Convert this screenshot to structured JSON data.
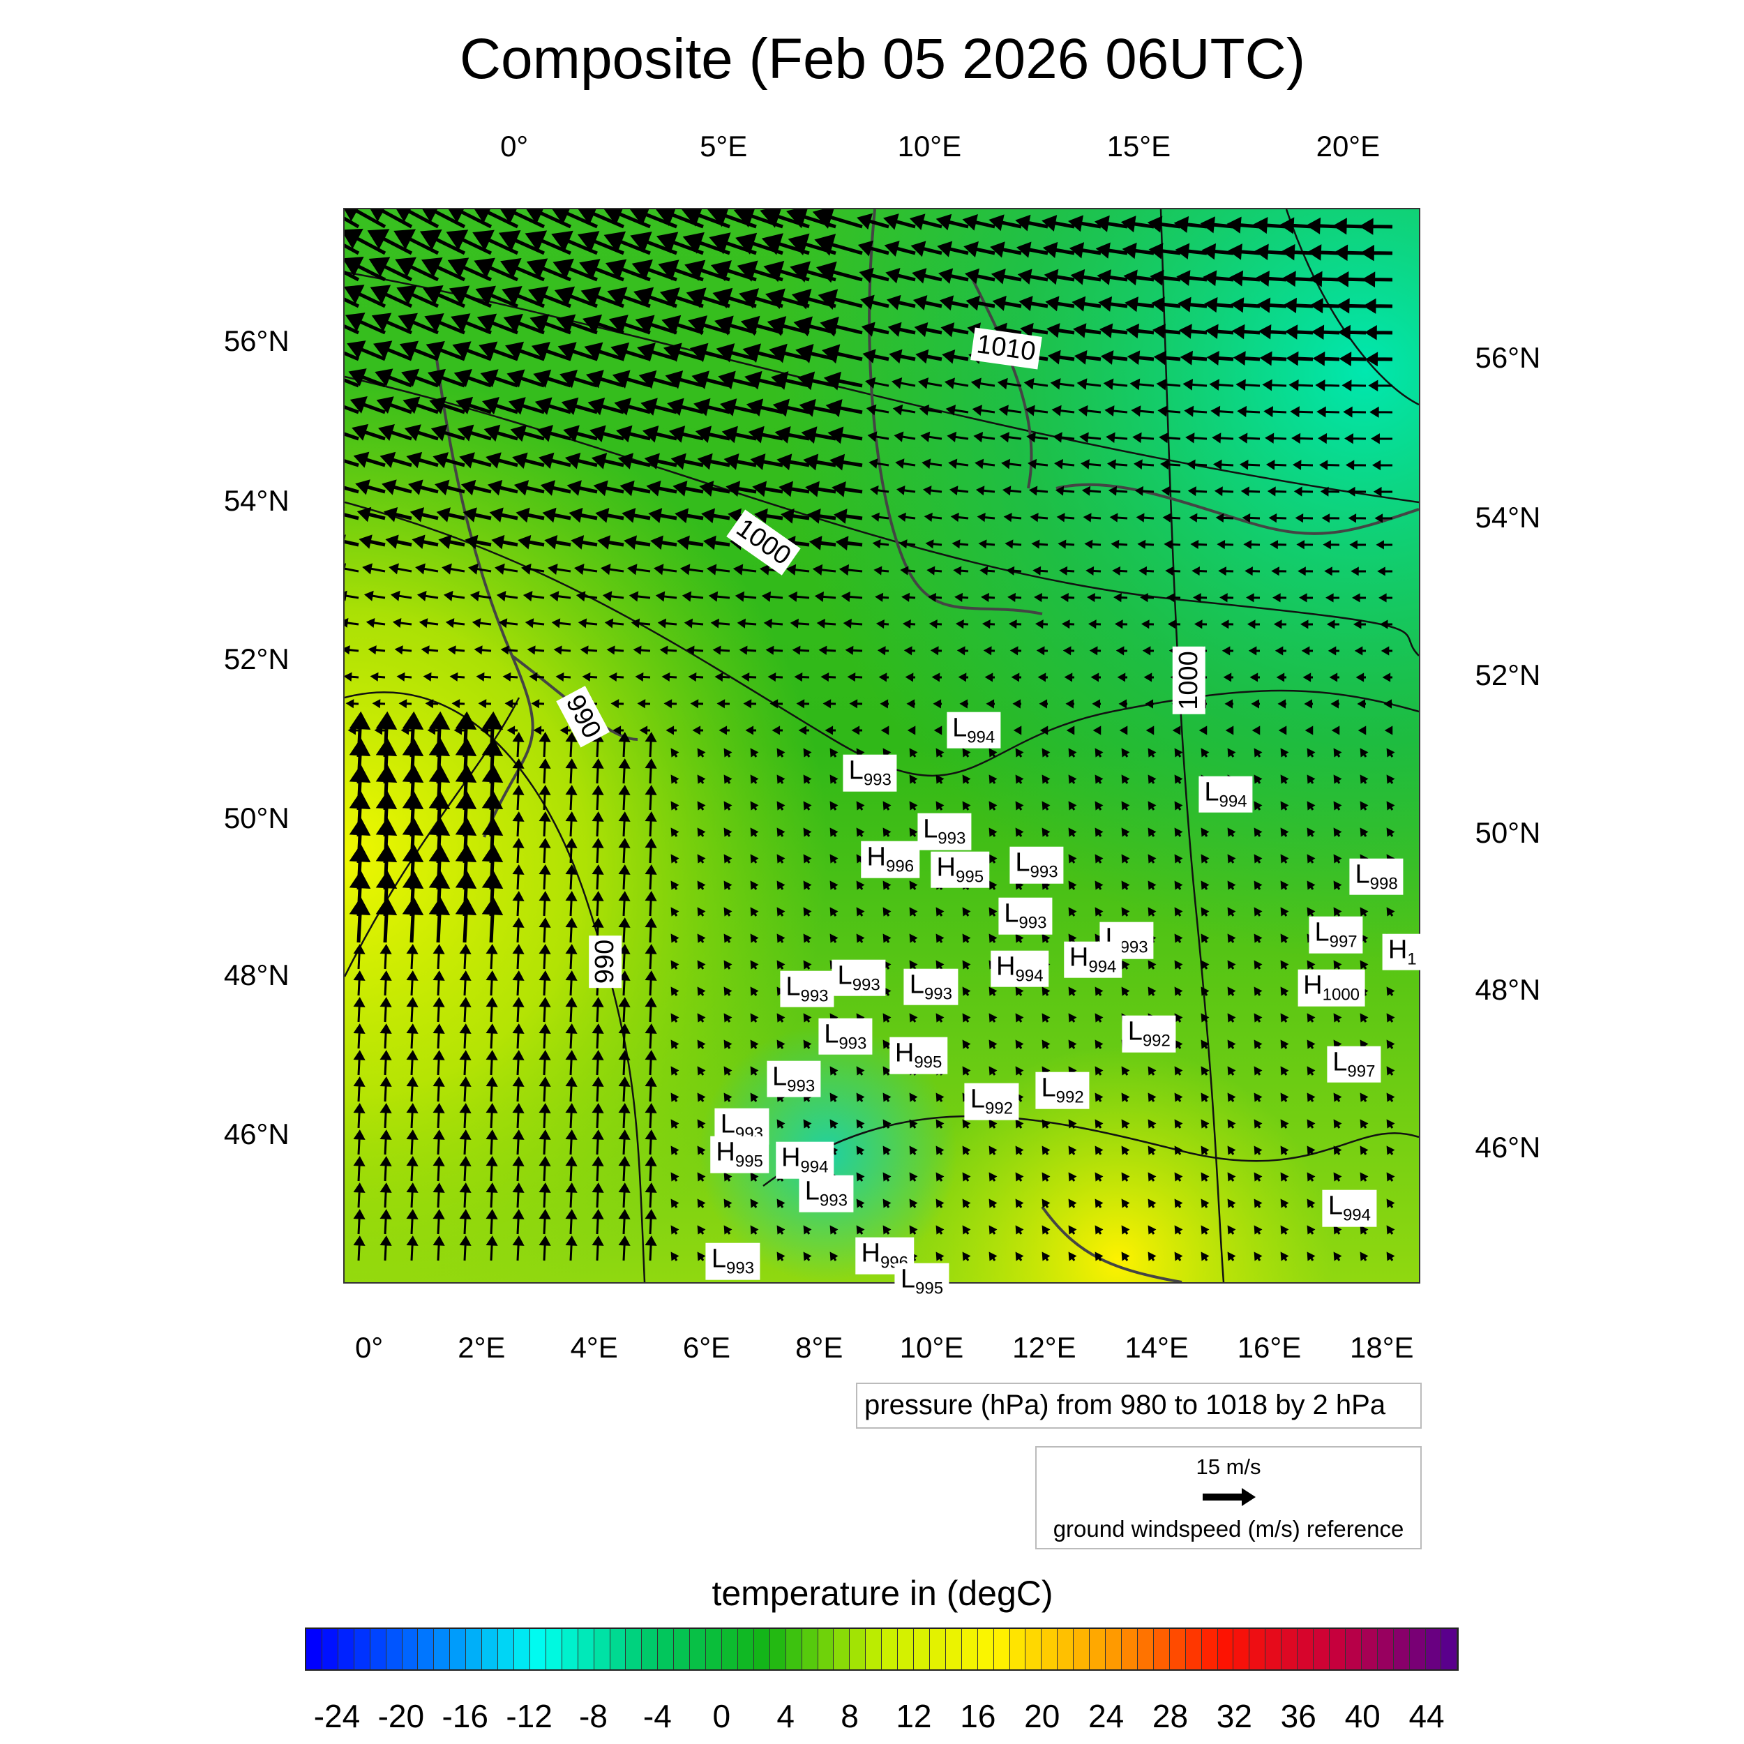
{
  "title": "Composite (Feb 05 2026 06UTC)",
  "axes": {
    "top": [
      "0°",
      "5°E",
      "10°E",
      "15°E",
      "20°E"
    ],
    "left": [
      "56°N",
      "54°N",
      "52°N",
      "50°N",
      "48°N",
      "46°N"
    ],
    "right": [
      "56°N",
      "54°N",
      "52°N",
      "50°N",
      "48°N",
      "46°N"
    ],
    "bottom": [
      "0°",
      "2°E",
      "4°E",
      "6°E",
      "8°E",
      "10°E",
      "12°E",
      "14°E",
      "16°E",
      "18°E"
    ]
  },
  "chart_data": {
    "type": "heatmap",
    "title": "Composite (Feb 05 2026 06UTC)",
    "fields": [
      "temperature (degC) filled",
      "pressure (hPa) contours",
      "ground wind vectors (m/s)"
    ],
    "contour_labels": [
      "1010",
      "1000",
      "990",
      "990",
      "1000"
    ],
    "pressure_centers": [
      {
        "type": "L",
        "value": "994"
      },
      {
        "type": "L",
        "value": "993"
      },
      {
        "type": "L",
        "value": "994"
      },
      {
        "type": "L",
        "value": "993"
      },
      {
        "type": "H",
        "value": "996"
      },
      {
        "type": "H",
        "value": "995"
      },
      {
        "type": "L",
        "value": "993"
      },
      {
        "type": "L",
        "value": "998"
      },
      {
        "type": "L",
        "value": "993"
      },
      {
        "type": "L",
        "value": "997"
      },
      {
        "type": "H",
        "value": "1"
      },
      {
        "type": "L",
        "value": "993"
      },
      {
        "type": "H",
        "value": "994"
      },
      {
        "type": "H",
        "value": "994"
      },
      {
        "type": "L",
        "value": "993"
      },
      {
        "type": "L",
        "value": "993"
      },
      {
        "type": "L",
        "value": "993"
      },
      {
        "type": "H",
        "value": "1000"
      },
      {
        "type": "L",
        "value": "993"
      },
      {
        "type": "H",
        "value": "995"
      },
      {
        "type": "L",
        "value": "992"
      },
      {
        "type": "L",
        "value": "997"
      },
      {
        "type": "L",
        "value": "993"
      },
      {
        "type": "L",
        "value": "992"
      },
      {
        "type": "L",
        "value": "992"
      },
      {
        "type": "L",
        "value": "993"
      },
      {
        "type": "H",
        "value": "995"
      },
      {
        "type": "H",
        "value": "994"
      },
      {
        "type": "L",
        "value": "993"
      },
      {
        "type": "L",
        "value": "994"
      },
      {
        "type": "L",
        "value": "993"
      },
      {
        "type": "H",
        "value": "996"
      },
      {
        "type": "L",
        "value": "995"
      }
    ],
    "pressure_range": {
      "min": 980,
      "max": 1018,
      "interval": 2
    },
    "wind_reference_ms": 15,
    "colorbar": {
      "min": -26,
      "max": 46,
      "step": 1,
      "ticks": [
        "-24",
        "-20",
        "-16",
        "-12",
        "-8",
        "-4",
        "0",
        "4",
        "8",
        "12",
        "16",
        "20",
        "24",
        "28",
        "32",
        "36",
        "40",
        "44"
      ]
    }
  },
  "legends": {
    "pressure": "pressure (hPa) from 980 to 1018 by 2 hPa",
    "wind_value": "15 m/s",
    "wind_label": "ground windspeed (m/s) reference",
    "colorbar_title": "temperature in (degC)"
  }
}
